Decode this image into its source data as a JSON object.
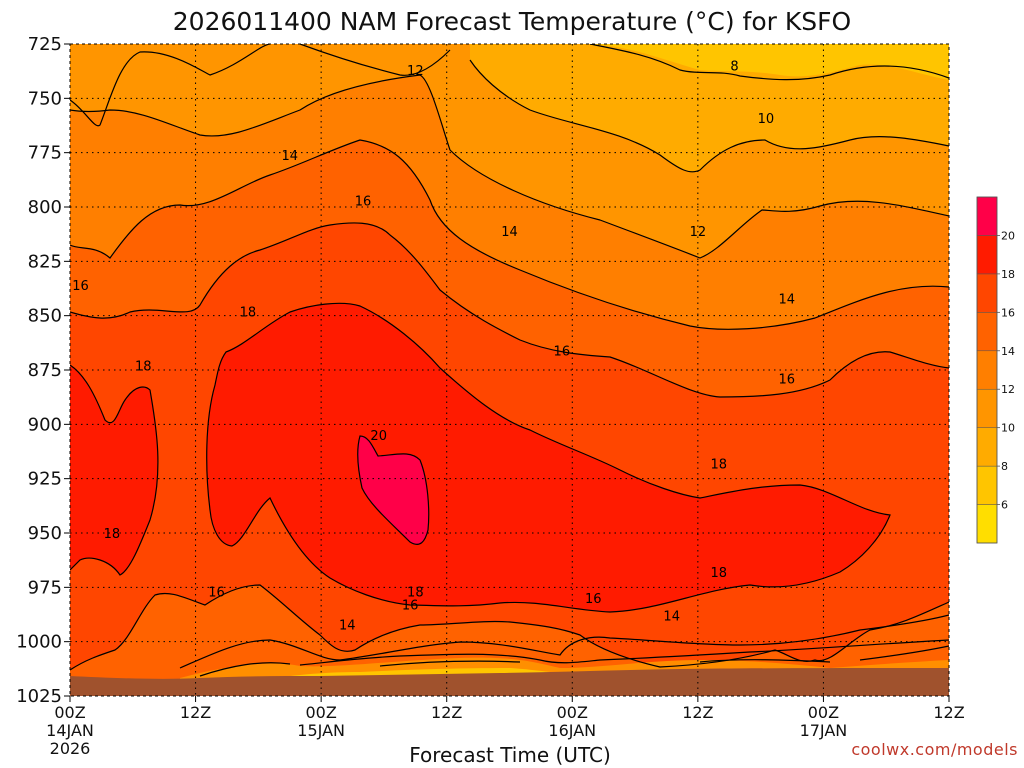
{
  "chart_data": {
    "type": "contour",
    "title": "2026011400 NAM Forecast Temperature (°C) for KSFO",
    "xlabel": "Forecast Time (UTC)",
    "ylabel": "",
    "credit": "coolwx.com/models",
    "y_ticks": [
      725,
      750,
      775,
      800,
      825,
      850,
      875,
      900,
      925,
      950,
      975,
      1000,
      1025
    ],
    "ylim": [
      1025,
      725
    ],
    "x_ticks": [
      {
        "line1": "00Z",
        "line2": "14JAN",
        "line3": "2026",
        "hour": 0
      },
      {
        "line1": "12Z",
        "line2": "",
        "line3": "",
        "hour": 12
      },
      {
        "line1": "00Z",
        "line2": "15JAN",
        "line3": "",
        "hour": 24
      },
      {
        "line1": "12Z",
        "line2": "",
        "line3": "",
        "hour": 36
      },
      {
        "line1": "00Z",
        "line2": "16JAN",
        "line3": "",
        "hour": 48
      },
      {
        "line1": "12Z",
        "line2": "",
        "line3": "",
        "hour": 60
      },
      {
        "line1": "00Z",
        "line2": "17JAN",
        "line3": "",
        "hour": 72
      },
      {
        "line1": "12Z",
        "line2": "",
        "line3": "",
        "hour": 84
      }
    ],
    "xlim_hours": [
      0,
      84
    ],
    "colorbar": {
      "labels": [
        "6",
        "8",
        "10",
        "12",
        "14",
        "16",
        "18",
        "20"
      ],
      "levels": [
        4,
        6,
        8,
        10,
        12,
        14,
        16,
        18,
        20,
        22
      ],
      "colors": [
        "#ffde00",
        "#ffc500",
        "#ffab00",
        "#ff9500",
        "#ff7f00",
        "#ff6200",
        "#ff4600",
        "#ff1b00",
        "#ff0048"
      ]
    },
    "contour_labels": [
      {
        "text": "8",
        "hour": 63.5,
        "p": 735
      },
      {
        "text": "10",
        "hour": 66.5,
        "p": 759
      },
      {
        "text": "12",
        "hour": 33.0,
        "p": 737
      },
      {
        "text": "12",
        "hour": 60.0,
        "p": 811
      },
      {
        "text": "14",
        "hour": 21.0,
        "p": 776
      },
      {
        "text": "14",
        "hour": 42.0,
        "p": 811
      },
      {
        "text": "14",
        "hour": 68.5,
        "p": 842
      },
      {
        "text": "14",
        "hour": 26.5,
        "p": 992
      },
      {
        "text": "14",
        "hour": 57.5,
        "p": 988
      },
      {
        "text": "16",
        "hour": 28.0,
        "p": 797
      },
      {
        "text": "16",
        "hour": 1.0,
        "p": 836
      },
      {
        "text": "16",
        "hour": 47.0,
        "p": 866
      },
      {
        "text": "16",
        "hour": 68.5,
        "p": 879
      },
      {
        "text": "16",
        "hour": 14.0,
        "p": 977
      },
      {
        "text": "16",
        "hour": 32.5,
        "p": 983
      },
      {
        "text": "16",
        "hour": 50.0,
        "p": 980
      },
      {
        "text": "18",
        "hour": 17.0,
        "p": 848
      },
      {
        "text": "18",
        "hour": 7.0,
        "p": 873
      },
      {
        "text": "18",
        "hour": 62.0,
        "p": 918
      },
      {
        "text": "18",
        "hour": 4.0,
        "p": 950
      },
      {
        "text": "18",
        "hour": 62.0,
        "p": 968
      },
      {
        "text": "18",
        "hour": 33.0,
        "p": 977
      },
      {
        "text": "20",
        "hour": 29.5,
        "p": 905
      }
    ]
  }
}
